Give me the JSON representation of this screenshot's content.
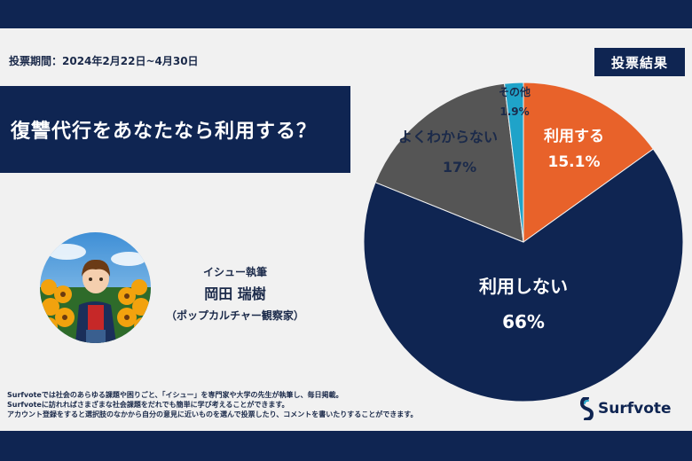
{
  "header": {
    "period": "投票期間：2024年2月22日~4月30日",
    "badge": "投票結果"
  },
  "question": "復讐代行をあなたなら利用する？",
  "author": {
    "role": "イシュー執筆",
    "name": "岡田 瑞樹",
    "title": "（ポップカルチャー観察家）"
  },
  "footer": [
    "Surfvoteでは社会のあらゆる課題や困りごと、「イシュー」を専門家や大学の先生が執筆し、毎日掲載。",
    "Surfvoteに訪れればさまざまな社会課題をだれでも簡単に学び考えることができます。",
    "アカウント登録をすると選択肢のなかから自分の意見に近いものを選んで投票したり、コメントを書いたりすることができます。"
  ],
  "logo": {
    "text": "Surfvote",
    "icon": "surfvote-logo-icon"
  },
  "colors": {
    "navy": "#0f2552",
    "orange": "#e8622a",
    "gray": "#555555",
    "teal": "#1fa3c9"
  },
  "chart_data": {
    "type": "pie",
    "slices": [
      {
        "label": "利用する",
        "value": 15.1,
        "display": "15.1%",
        "color": "#e8622a"
      },
      {
        "label": "利用しない",
        "value": 66,
        "display": "66%",
        "color": "#0f2552"
      },
      {
        "label": "よくわからない",
        "value": 17,
        "display": "17%",
        "color": "#555555"
      },
      {
        "label": "その他",
        "value": 1.9,
        "display": "1.9%",
        "color": "#1fa3c9"
      }
    ]
  }
}
